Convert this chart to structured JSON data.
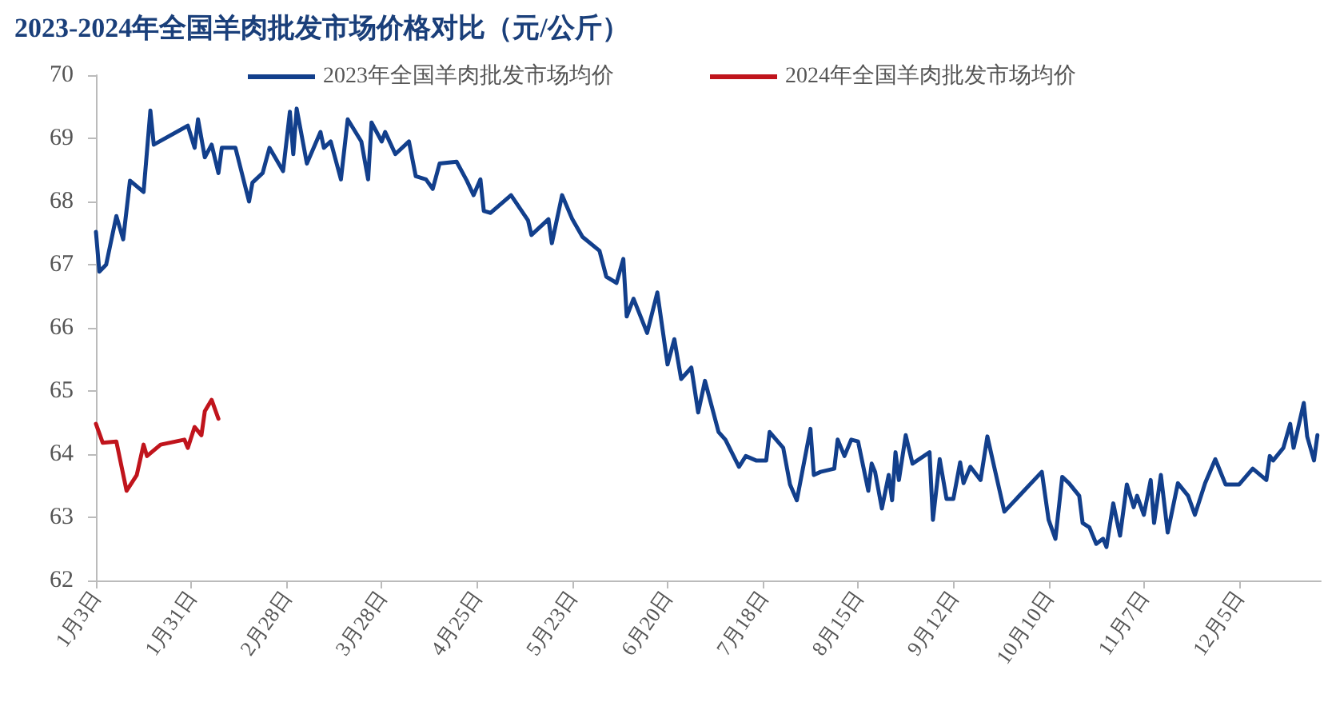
{
  "chart_data": {
    "type": "line",
    "title": "2023-2024年全国羊肉批发市场价格对比（元/公斤）",
    "xlim": [
      "--01-03",
      "--12-29"
    ],
    "xticks": [
      {
        "value": "--01-03",
        "label": "1月3日"
      },
      {
        "value": "--01-31",
        "label": "1月31日"
      },
      {
        "value": "--02-28",
        "label": "2月28日"
      },
      {
        "value": "--03-28",
        "label": "3月28日"
      },
      {
        "value": "--04-25",
        "label": "4月25日"
      },
      {
        "value": "--05-23",
        "label": "5月23日"
      },
      {
        "value": "--06-20",
        "label": "6月20日"
      },
      {
        "value": "--07-18",
        "label": "7月18日"
      },
      {
        "value": "--08-15",
        "label": "8月15日"
      },
      {
        "value": "--09-12",
        "label": "9月12日"
      },
      {
        "value": "--10-10",
        "label": "10月10日"
      },
      {
        "value": "--11-07",
        "label": "11月7日"
      },
      {
        "value": "--12-05",
        "label": "12月5日"
      }
    ],
    "ylim": [
      62,
      70
    ],
    "yticks": [
      62,
      63,
      64,
      65,
      66,
      67,
      68,
      69,
      70
    ],
    "grid": false,
    "legend": "top",
    "marker": "none",
    "line_style": "solid",
    "series": [
      {
        "name": "2023年全国羊肉批发市场均价",
        "color": "#123f8c",
        "x": [
          "--01-03",
          "--01-04",
          "--01-06",
          "--01-09",
          "--01-11",
          "--01-13",
          "--01-17",
          "--01-19",
          "--01-20",
          "--01-30",
          "--02-01",
          "--02-02",
          "--02-04",
          "--02-06",
          "--02-08",
          "--02-09",
          "--02-13",
          "--02-17",
          "--02-18",
          "--02-21",
          "--02-23",
          "--02-27",
          "--03-01",
          "--03-02",
          "--03-03",
          "--03-06",
          "--03-10",
          "--03-11",
          "--03-13",
          "--03-16",
          "--03-18",
          "--03-22",
          "--03-24",
          "--03-25",
          "--03-28",
          "--03-29",
          "--04-01",
          "--04-05",
          "--04-07",
          "--04-10",
          "--04-12",
          "--04-14",
          "--04-19",
          "--04-22",
          "--04-24",
          "--04-26",
          "--04-27",
          "--04-29",
          "--05-05",
          "--05-10",
          "--05-11",
          "--05-16",
          "--05-17",
          "--05-20",
          "--05-23",
          "--05-26",
          "--05-31",
          "--06-02",
          "--06-05",
          "--06-07",
          "--06-08",
          "--06-10",
          "--06-14",
          "--06-17",
          "--06-20",
          "--06-22",
          "--06-24",
          "--06-27",
          "--06-29",
          "--07-01",
          "--07-05",
          "--07-07",
          "--07-11",
          "--07-13",
          "--07-16",
          "--07-19",
          "--07-20",
          "--07-24",
          "--07-26",
          "--07-28",
          "--08-01",
          "--08-02",
          "--08-04",
          "--08-08",
          "--08-09",
          "--08-11",
          "--08-13",
          "--08-15",
          "--08-18",
          "--08-19",
          "--08-20",
          "--08-22",
          "--08-24",
          "--08-25",
          "--08-26",
          "--08-27",
          "--08-29",
          "--08-31",
          "--09-05",
          "--09-06",
          "--09-08",
          "--09-10",
          "--09-12",
          "--09-14",
          "--09-15",
          "--09-17",
          "--09-20",
          "--09-22",
          "--09-24",
          "--09-27",
          "--10-08",
          "--10-10",
          "--10-12",
          "--10-14",
          "--10-16",
          "--10-19",
          "--10-20",
          "--10-22",
          "--10-24",
          "--10-26",
          "--10-27",
          "--10-29",
          "--10-31",
          "--11-02",
          "--11-04",
          "--11-05",
          "--11-07",
          "--11-09",
          "--11-10",
          "--11-12",
          "--11-14",
          "--11-17",
          "--11-20",
          "--11-22",
          "--11-25",
          "--11-28",
          "--12-01",
          "--12-05",
          "--12-09",
          "--12-13",
          "--12-14",
          "--12-15",
          "--12-18",
          "--12-20",
          "--12-21",
          "--12-24",
          "--12-25",
          "--12-27",
          "--12-28"
        ],
        "values": [
          67.52,
          66.89,
          67.0,
          67.77,
          67.4,
          68.33,
          68.15,
          69.44,
          68.9,
          69.2,
          68.85,
          69.3,
          68.7,
          68.9,
          68.45,
          68.85,
          68.85,
          68.0,
          68.3,
          68.45,
          68.85,
          68.48,
          69.42,
          68.75,
          69.47,
          68.6,
          69.1,
          68.85,
          68.95,
          68.35,
          69.3,
          68.95,
          68.35,
          69.25,
          68.95,
          69.1,
          68.75,
          68.95,
          68.4,
          68.35,
          68.2,
          68.6,
          68.63,
          68.33,
          68.1,
          68.35,
          67.85,
          67.82,
          68.1,
          67.7,
          67.47,
          67.72,
          67.34,
          68.1,
          67.72,
          67.44,
          67.22,
          66.81,
          66.71,
          67.09,
          66.18,
          66.46,
          65.92,
          66.56,
          65.42,
          65.82,
          65.19,
          65.37,
          64.66,
          65.16,
          64.35,
          64.23,
          63.8,
          63.97,
          63.9,
          63.9,
          64.35,
          64.1,
          63.52,
          63.27,
          64.4,
          63.67,
          63.72,
          63.77,
          64.23,
          63.97,
          64.23,
          64.2,
          63.42,
          63.85,
          63.72,
          63.14,
          63.67,
          63.27,
          64.03,
          63.59,
          64.3,
          63.85,
          64.03,
          62.96,
          63.92,
          63.29,
          63.29,
          63.87,
          63.54,
          63.8,
          63.59,
          64.28,
          63.8,
          63.09,
          63.72,
          62.96,
          62.66,
          63.64,
          63.54,
          63.34,
          62.91,
          62.84,
          62.58,
          62.66,
          62.53,
          63.22,
          62.71,
          63.52,
          63.16,
          63.34,
          63.04,
          63.59,
          62.91,
          63.67,
          62.76,
          63.54,
          63.34,
          63.04,
          63.54,
          63.92,
          63.52,
          63.52,
          63.77,
          63.59,
          63.97,
          63.9,
          64.1,
          64.48,
          64.1,
          64.81,
          64.28,
          63.9,
          64.3
        ]
      },
      {
        "name": "2024年全国羊肉批发市场均价",
        "color": "#c0141c",
        "x": [
          "--01-03",
          "--01-05",
          "--01-09",
          "--01-12",
          "--01-15",
          "--01-17",
          "--01-18",
          "--01-22",
          "--01-29",
          "--01-30",
          "--02-01",
          "--02-03",
          "--02-04",
          "--02-06",
          "--02-08"
        ],
        "values": [
          64.48,
          64.18,
          64.2,
          63.42,
          63.67,
          64.15,
          63.97,
          64.15,
          64.23,
          64.1,
          64.43,
          64.3,
          64.68,
          64.86,
          64.56
        ]
      }
    ]
  }
}
